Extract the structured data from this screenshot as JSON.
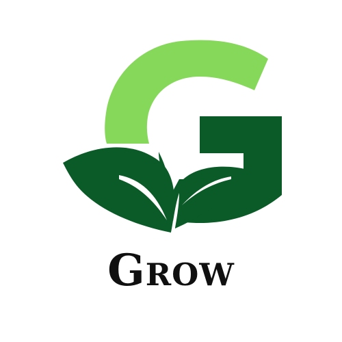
{
  "brand": {
    "name": "Grow",
    "colors": {
      "light_green": "#86D85A",
      "dark_green": "#0B5B28",
      "leaf_vein": "#FFFFFF",
      "wordmark": "#101010"
    }
  },
  "icons": [
    "g-letter-icon",
    "leaf-icon"
  ]
}
